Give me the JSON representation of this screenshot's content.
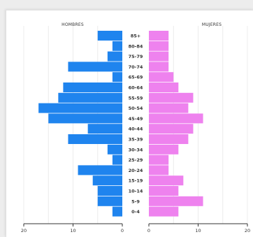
{
  "chart_data": {
    "type": "bar",
    "orientation": "horizontal",
    "subtype": "population-pyramid",
    "categories": [
      "85+",
      "80-84",
      "75-79",
      "70-74",
      "65-69",
      "60-64",
      "55-59",
      "50-54",
      "45-49",
      "40-44",
      "35-39",
      "30-34",
      "25-29",
      "20-24",
      "15-19",
      "10-14",
      "5-9",
      "0-4"
    ],
    "series": [
      {
        "name": "HOMBRES",
        "color": "#1f84ee",
        "values": [
          5,
          2,
          3,
          11,
          2,
          12,
          13,
          17,
          15,
          7,
          11,
          3,
          2,
          9,
          6,
          5,
          5,
          2
        ]
      },
      {
        "name": "MUJERES",
        "color": "#ee82ee",
        "values": [
          4,
          4,
          4,
          4,
          5,
          6,
          9,
          8,
          11,
          9,
          8,
          6,
          4,
          4,
          7,
          6,
          11,
          6
        ]
      }
    ],
    "x_ticks_left": [
      "20",
      "10",
      "0"
    ],
    "x_ticks_right": [
      "0",
      "10",
      "20"
    ],
    "xlim": [
      0,
      20
    ],
    "grid": true,
    "title": "",
    "xlabel": "",
    "ylabel": ""
  }
}
